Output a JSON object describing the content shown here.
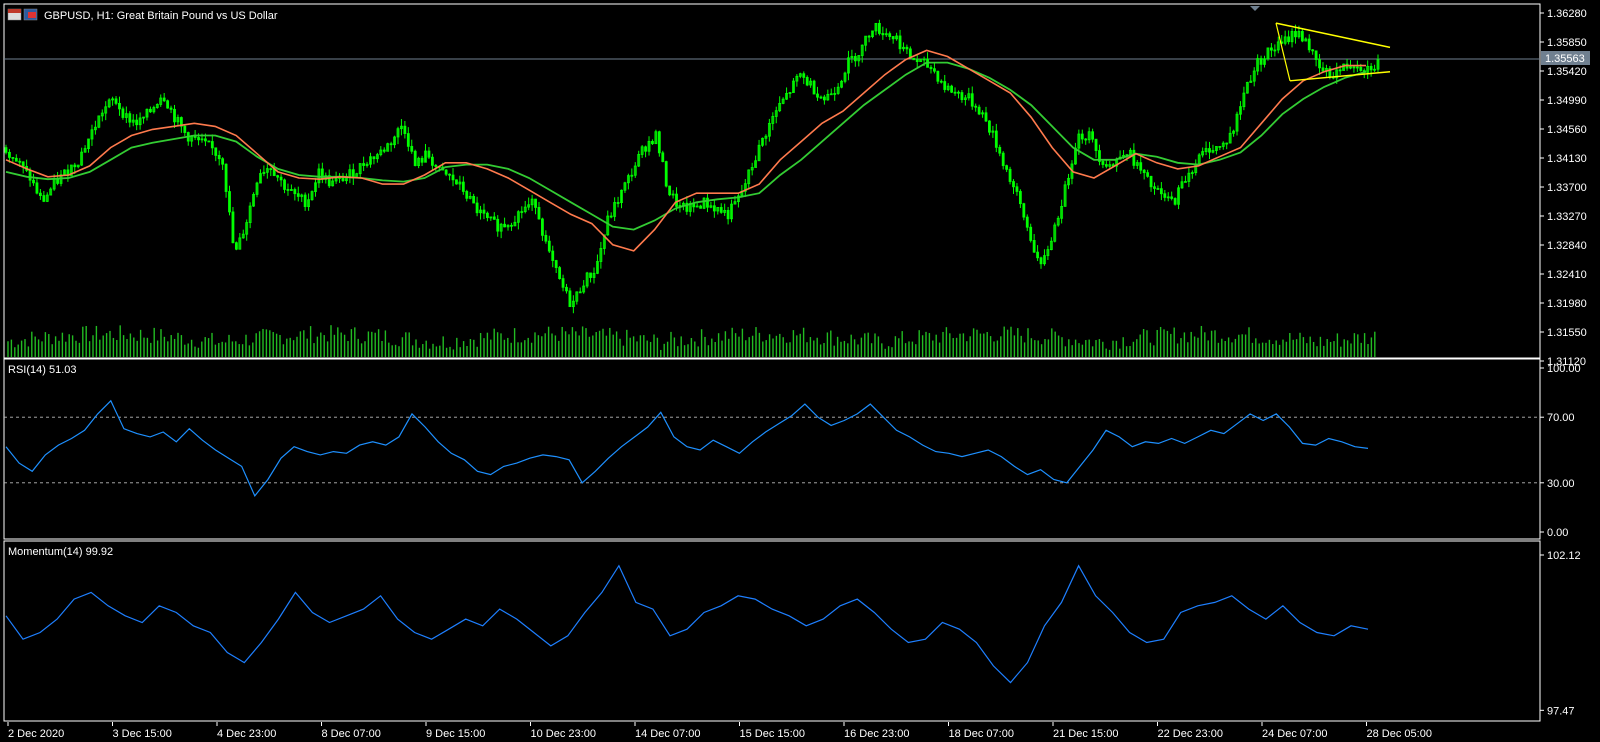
{
  "header": {
    "main_title": "GBPUSD, H1:  Great Britain Pound vs US Dollar",
    "rsi_title": "RSI(14) 51.03",
    "momentum_title": "Momentum(14) 99.92",
    "current_price": "1.35563",
    "flag_icon_left": "gb-flag-icon",
    "flag_icon_right": "us-flag-icon"
  },
  "colors": {
    "background": "#000000",
    "grid": "#ffffff",
    "candle": "#00ff00",
    "volume": "#22bb22",
    "ma_fast": "#ff7a4d",
    "ma_slow": "#33cc33",
    "triangle": "#ffff00",
    "rsi": "#1e90ff",
    "momentum": "#1e7fff",
    "price_line": "#708090"
  },
  "chart_data": [
    {
      "type": "candlestick",
      "title": "GBPUSD, H1:  Great Britain Pound vs US Dollar",
      "y_ticks": [
        "1.36280",
        "1.35850",
        "1.35420",
        "1.34990",
        "1.34560",
        "1.34130",
        "1.33700",
        "1.33270",
        "1.32840",
        "1.32410",
        "1.31980",
        "1.31550",
        "1.31120"
      ],
      "ylim": [
        1.31,
        1.364
      ],
      "x_ticks": [
        "2 Dec 2020",
        "3 Dec 15:00",
        "4 Dec 23:00",
        "8 Dec 07:00",
        "9 Dec 15:00",
        "10 Dec 23:00",
        "14 Dec 07:00",
        "15 Dec 15:00",
        "16 Dec 23:00",
        "18 Dec 07:00",
        "21 Dec 15:00",
        "22 Dec 23:00",
        "24 Dec 07:00",
        "28 Dec 05:00"
      ],
      "close_series": [
        1.342,
        1.3395,
        1.337,
        1.333,
        1.336,
        1.338,
        1.34,
        1.344,
        1.348,
        1.35,
        1.347,
        1.346,
        1.348,
        1.351,
        1.347,
        1.344,
        1.343,
        1.342,
        1.34,
        1.324,
        1.33,
        1.338,
        1.339,
        1.336,
        1.334,
        1.333,
        1.338,
        1.336,
        1.337,
        1.338,
        1.34,
        1.341,
        1.343,
        1.346,
        1.339,
        1.341,
        1.338,
        1.337,
        1.335,
        1.332,
        1.33,
        1.329,
        1.33,
        1.332,
        1.333,
        1.325,
        1.32,
        1.316,
        1.32,
        1.322,
        1.33,
        1.334,
        1.338,
        1.342,
        1.344,
        1.335,
        1.332,
        1.332,
        1.333,
        1.332,
        1.331,
        1.334,
        1.339,
        1.344,
        1.348,
        1.351,
        1.354,
        1.352,
        1.35,
        1.352,
        1.356,
        1.358,
        1.362,
        1.361,
        1.36,
        1.357,
        1.356,
        1.355,
        1.352,
        1.351,
        1.35,
        1.348,
        1.344,
        1.339,
        1.334,
        1.328,
        1.322,
        1.328,
        1.335,
        1.344,
        1.344,
        1.34,
        1.339,
        1.342,
        1.339,
        1.336,
        1.334,
        1.333,
        1.337,
        1.34,
        1.342,
        1.342,
        1.345,
        1.352,
        1.356,
        1.358,
        1.359,
        1.361,
        1.36,
        1.355,
        1.354,
        1.355,
        1.356,
        1.355,
        1.356
      ],
      "ma_fast_series": [
        1.34,
        1.3385,
        1.3372,
        1.3375,
        1.339,
        1.342,
        1.344,
        1.345,
        1.3455,
        1.346,
        1.3455,
        1.344,
        1.341,
        1.338,
        1.337,
        1.3368,
        1.3372,
        1.337,
        1.336,
        1.336,
        1.3375,
        1.3395,
        1.3395,
        1.3385,
        1.337,
        1.335,
        1.333,
        1.331,
        1.3295,
        1.326,
        1.325,
        1.3285,
        1.333,
        1.3345,
        1.3345,
        1.3345,
        1.336,
        1.34,
        1.343,
        1.346,
        1.348,
        1.351,
        1.354,
        1.3565,
        1.358,
        1.357,
        1.355,
        1.353,
        1.351,
        1.347,
        1.342,
        1.338,
        1.337,
        1.339,
        1.341,
        1.3395,
        1.3385,
        1.339,
        1.3405,
        1.342,
        1.346,
        1.35,
        1.353,
        1.3545,
        1.3555,
        1.3555
      ],
      "ma_slow_series": [
        1.338,
        1.3372,
        1.3368,
        1.337,
        1.338,
        1.34,
        1.342,
        1.3428,
        1.3434,
        1.344,
        1.344,
        1.343,
        1.3405,
        1.3385,
        1.3375,
        1.3372,
        1.3372,
        1.337,
        1.3366,
        1.3364,
        1.337,
        1.3388,
        1.3392,
        1.3392,
        1.3385,
        1.337,
        1.335,
        1.333,
        1.331,
        1.329,
        1.3285,
        1.33,
        1.332,
        1.333,
        1.3335,
        1.3338,
        1.3345,
        1.3375,
        1.34,
        1.343,
        1.346,
        1.349,
        1.3515,
        1.354,
        1.356,
        1.356,
        1.355,
        1.3535,
        1.3515,
        1.349,
        1.3455,
        1.342,
        1.34,
        1.34,
        1.341,
        1.3405,
        1.3395,
        1.3392,
        1.34,
        1.3412,
        1.344,
        1.3475,
        1.35,
        1.352,
        1.3535,
        1.3545
      ],
      "triangle_top": [
        [
          1.3625,
          0
        ],
        [
          1.3585,
          1
        ]
      ],
      "triangle_bottom": [
        [
          1.353,
          0
        ],
        [
          1.3545,
          1
        ]
      ]
    },
    {
      "type": "line",
      "title": "RSI(14) 51.03",
      "y_ticks": [
        "100.00",
        "70.00",
        "30.00",
        "0.00"
      ],
      "levels": [
        70,
        30
      ],
      "ylim": [
        0,
        100
      ],
      "values": [
        52,
        42,
        37,
        47,
        53,
        57,
        62,
        72,
        80,
        63,
        60,
        58,
        61,
        55,
        63,
        56,
        50,
        45,
        40,
        22,
        32,
        45,
        52,
        49,
        47,
        49,
        48,
        53,
        55,
        53,
        58,
        72,
        64,
        55,
        48,
        44,
        37,
        35,
        40,
        42,
        45,
        47,
        46,
        44,
        30,
        37,
        45,
        52,
        58,
        64,
        73,
        58,
        52,
        50,
        56,
        52,
        48,
        55,
        61,
        66,
        71,
        78,
        70,
        65,
        68,
        72,
        78,
        70,
        62,
        58,
        53,
        49,
        48,
        46,
        48,
        50,
        46,
        40,
        35,
        38,
        32,
        30,
        40,
        50,
        62,
        58,
        52,
        55,
        54,
        57,
        54,
        58,
        62,
        60,
        66,
        72,
        68,
        72,
        64,
        54,
        53,
        57,
        55,
        52,
        51
      ]
    },
    {
      "type": "line",
      "title": "Momentum(14) 99.92",
      "y_ticks": [
        "102.12",
        "97.47"
      ],
      "ylim": [
        97.3,
        102.3
      ],
      "values": [
        100.3,
        99.6,
        99.8,
        100.2,
        100.8,
        101.0,
        100.6,
        100.3,
        100.1,
        100.6,
        100.4,
        100.0,
        99.8,
        99.2,
        98.9,
        99.5,
        100.2,
        101.0,
        100.4,
        100.1,
        100.3,
        100.5,
        100.9,
        100.2,
        99.8,
        99.6,
        99.9,
        100.2,
        100.0,
        100.5,
        100.2,
        99.8,
        99.4,
        99.7,
        100.4,
        101.0,
        101.8,
        100.7,
        100.5,
        99.7,
        99.9,
        100.4,
        100.6,
        100.9,
        100.8,
        100.5,
        100.3,
        100.0,
        100.2,
        100.6,
        100.8,
        100.4,
        99.9,
        99.5,
        99.6,
        100.1,
        99.9,
        99.5,
        98.8,
        98.3,
        98.9,
        100.0,
        100.7,
        101.8,
        100.9,
        100.4,
        99.8,
        99.5,
        99.6,
        100.4,
        100.6,
        100.7,
        100.9,
        100.5,
        100.2,
        100.6,
        100.1,
        99.8,
        99.7,
        100.0,
        99.9
      ]
    }
  ]
}
